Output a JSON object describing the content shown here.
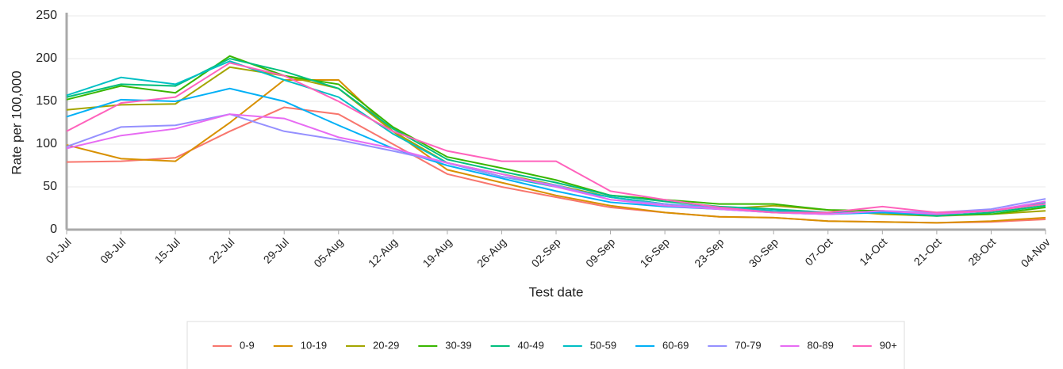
{
  "chart_data": {
    "type": "line",
    "x_label": "Test date",
    "y_label": "Rate per 100,000",
    "x": [
      "01-Jul",
      "08-Jul",
      "15-Jul",
      "22-Jul",
      "29-Jul",
      "05-Aug",
      "12-Aug",
      "19-Aug",
      "26-Aug",
      "02-Sep",
      "09-Sep",
      "16-Sep",
      "23-Sep",
      "30-Sep",
      "07-Oct",
      "14-Oct",
      "21-Oct",
      "28-Oct",
      "04-Nov"
    ],
    "ylim": [
      0,
      250
    ],
    "yticks": [
      0,
      50,
      100,
      150,
      200,
      250
    ],
    "grid": true,
    "series": [
      {
        "name": "0-9",
        "color": "#f8766d",
        "values": [
          79,
          80,
          84,
          115,
          143,
          135,
          100,
          65,
          50,
          38,
          26,
          20,
          15,
          14,
          10,
          9,
          8,
          9,
          12
        ]
      },
      {
        "name": "10-19",
        "color": "#d89000",
        "values": [
          99,
          83,
          80,
          125,
          175,
          175,
          115,
          70,
          55,
          40,
          28,
          20,
          15,
          14,
          10,
          9,
          8,
          10,
          14
        ]
      },
      {
        "name": "20-29",
        "color": "#a3a500",
        "values": [
          140,
          146,
          147,
          190,
          180,
          165,
          115,
          78,
          65,
          52,
          38,
          30,
          24,
          28,
          23,
          18,
          16,
          18,
          22
        ]
      },
      {
        "name": "30-39",
        "color": "#39b600",
        "values": [
          152,
          168,
          160,
          203,
          180,
          170,
          120,
          85,
          72,
          58,
          40,
          35,
          30,
          30,
          23,
          22,
          17,
          18,
          26
        ]
      },
      {
        "name": "40-49",
        "color": "#00bf7d",
        "values": [
          155,
          170,
          168,
          200,
          185,
          165,
          118,
          82,
          68,
          55,
          40,
          33,
          27,
          24,
          20,
          20,
          16,
          20,
          28
        ]
      },
      {
        "name": "50-59",
        "color": "#00bfc4",
        "values": [
          157,
          178,
          170,
          197,
          175,
          155,
          112,
          78,
          62,
          50,
          38,
          30,
          26,
          22,
          20,
          20,
          18,
          22,
          32
        ]
      },
      {
        "name": "60-69",
        "color": "#00b0f6",
        "values": [
          132,
          152,
          150,
          165,
          150,
          122,
          95,
          75,
          60,
          45,
          32,
          27,
          24,
          20,
          18,
          20,
          18,
          22,
          30
        ]
      },
      {
        "name": "70-79",
        "color": "#9590ff",
        "values": [
          97,
          120,
          122,
          135,
          115,
          105,
          92,
          78,
          62,
          52,
          35,
          30,
          25,
          20,
          18,
          22,
          20,
          24,
          36
        ]
      },
      {
        "name": "80-89",
        "color": "#e76bf3",
        "values": [
          95,
          110,
          118,
          135,
          130,
          108,
          95,
          78,
          65,
          50,
          35,
          28,
          24,
          20,
          18,
          22,
          18,
          22,
          33
        ]
      },
      {
        "name": "90+",
        "color": "#ff62bc",
        "values": [
          115,
          148,
          155,
          195,
          180,
          150,
          115,
          92,
          80,
          80,
          45,
          35,
          26,
          20,
          20,
          27,
          20,
          22,
          30
        ]
      }
    ]
  }
}
